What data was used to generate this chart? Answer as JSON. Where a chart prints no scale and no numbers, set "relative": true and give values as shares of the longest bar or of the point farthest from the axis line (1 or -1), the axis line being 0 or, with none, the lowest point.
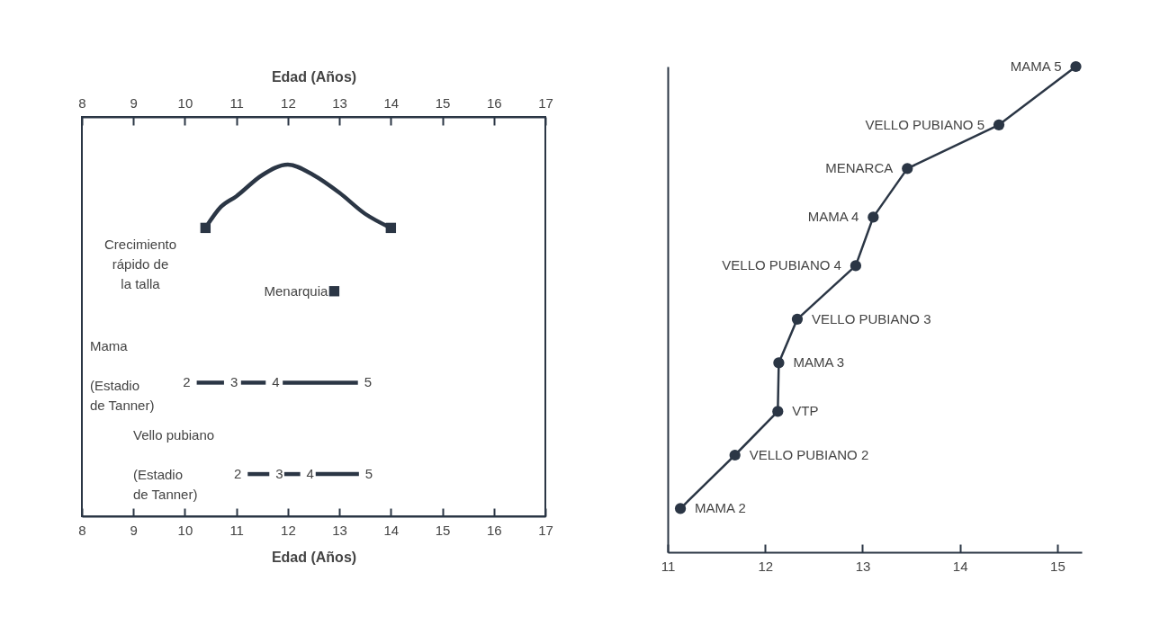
{
  "chart_data": [
    {
      "type": "line",
      "relative": true,
      "xlabel": "Edad (Años)",
      "x2label": "Edad (Años)",
      "xlim": [
        8,
        17
      ],
      "xticks": [
        8,
        9,
        10,
        11,
        12,
        13,
        14,
        15,
        16,
        17
      ],
      "x2lim": [
        8,
        17
      ],
      "x2ticks": [
        8,
        9,
        10,
        11,
        12,
        13,
        14,
        15,
        16,
        17
      ],
      "marker": "square",
      "series": [
        {
          "marker": "none",
          "color": "#2b3645",
          "x": [
            10.4,
            10.7,
            11,
            11.5,
            12,
            12.5,
            13,
            13.5,
            14
          ],
          "values": [
            0.82,
            0.88,
            0.91,
            0.97,
            1,
            0.97,
            0.92,
            0.86,
            0.82
          ]
        },
        {
          "type": "scatter",
          "color": "#2b3645",
          "x": [
            10.4,
            14
          ],
          "values": [
            0.82,
            0.82
          ]
        },
        {
          "type": "scatter",
          "color": "#2b3645",
          "x": [
            12.9
          ],
          "values": [
            0.64
          ]
        },
        {
          "marker": "none",
          "color": "#2b3645",
          "x": [
            10.23,
            10.76
          ],
          "values": [
            0.38,
            0.38
          ]
        },
        {
          "marker": "none",
          "color": "#2b3645",
          "x": [
            11.09,
            11.57
          ],
          "values": [
            0.38,
            0.38
          ]
        },
        {
          "marker": "none",
          "color": "#2b3645",
          "x": [
            11.9,
            13.36
          ],
          "values": [
            0.38,
            0.38
          ]
        },
        {
          "marker": "none",
          "color": "#2b3645",
          "x": [
            11.22,
            11.64
          ],
          "values": [
            0.12,
            0.12
          ]
        },
        {
          "marker": "none",
          "color": "#2b3645",
          "x": [
            11.93,
            12.24
          ],
          "values": [
            0.12,
            0.12
          ]
        },
        {
          "marker": "none",
          "color": "#2b3645",
          "x": [
            12.54,
            13.38
          ],
          "values": [
            0.12,
            0.12
          ]
        }
      ],
      "annotations": [
        "Crecimiento\nrápido de\nla talla",
        {
          "text": "Menarquia",
          "x": 12.9,
          "y": 0.64
        },
        "Mama",
        "(Estadio\nde Tanner)",
        {
          "text": "2",
          "x": 10.23,
          "y": 0.38
        },
        {
          "text": "3",
          "x": 10.76,
          "y": 0.38
        },
        {
          "text": "4",
          "x": 11.57,
          "y": 0.38
        },
        {
          "text": "5",
          "x": 13.36,
          "y": 0.38
        },
        "Vello pubiano",
        "(Estadio\nde Tanner)",
        {
          "text": "2",
          "x": 11.22,
          "y": 0.12
        },
        {
          "text": "3",
          "x": 11.64,
          "y": 0.12
        },
        {
          "text": "4",
          "x": 12.24,
          "y": 0.12
        },
        {
          "text": "5",
          "x": 13.38,
          "y": 0.12
        }
      ]
    },
    {
      "type": "line",
      "relative": true,
      "xlim": [
        11,
        15.25
      ],
      "xticks": [
        11,
        12,
        13,
        14,
        15
      ],
      "marker": "circle",
      "series": [
        {
          "color": "#2b3645",
          "x": [
            11.13,
            11.69,
            12.13,
            12.14,
            12.33,
            12.93,
            13.11,
            13.46,
            14.4,
            15.19
          ],
          "values": [
            0.09,
            0.2,
            0.29,
            0.39,
            0.48,
            0.59,
            0.69,
            0.79,
            0.88,
            1
          ]
        }
      ],
      "annotations": [
        {
          "text": "MAMA 2",
          "x": 11.13,
          "y": 0.09
        },
        {
          "text": "VELLO PUBIANO 2",
          "x": 11.69,
          "y": 0.2
        },
        {
          "text": "VTP",
          "x": 12.13,
          "y": 0.29
        },
        {
          "text": "MAMA 3",
          "x": 12.14,
          "y": 0.39
        },
        {
          "text": "VELLO PUBIANO 3",
          "x": 12.33,
          "y": 0.48
        },
        {
          "text": "VELLO PUBIANO 4",
          "x": 12.93,
          "y": 0.59
        },
        {
          "text": "MAMA 4",
          "x": 13.11,
          "y": 0.69
        },
        {
          "text": "MENARCA",
          "x": 13.46,
          "y": 0.79
        },
        {
          "text": "VELLO PUBIANO 5",
          "x": 14.4,
          "y": 0.88
        },
        {
          "text": "MAMA 5",
          "x": 15.19,
          "y": 1
        }
      ]
    }
  ]
}
